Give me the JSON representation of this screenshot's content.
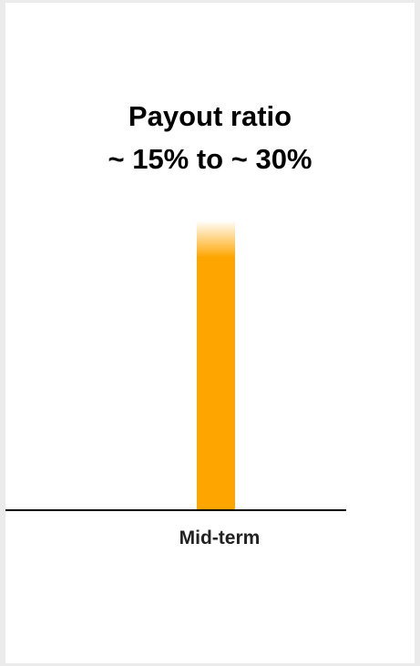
{
  "chart_data": {
    "type": "bar",
    "title_lines": [
      "Payout ratio",
      "~ 15% to ~ 30%"
    ],
    "categories": [
      "Mid-term"
    ],
    "range": [
      15,
      30
    ],
    "colors": {
      "bar": "#ffa500",
      "axis": "#000000"
    }
  }
}
